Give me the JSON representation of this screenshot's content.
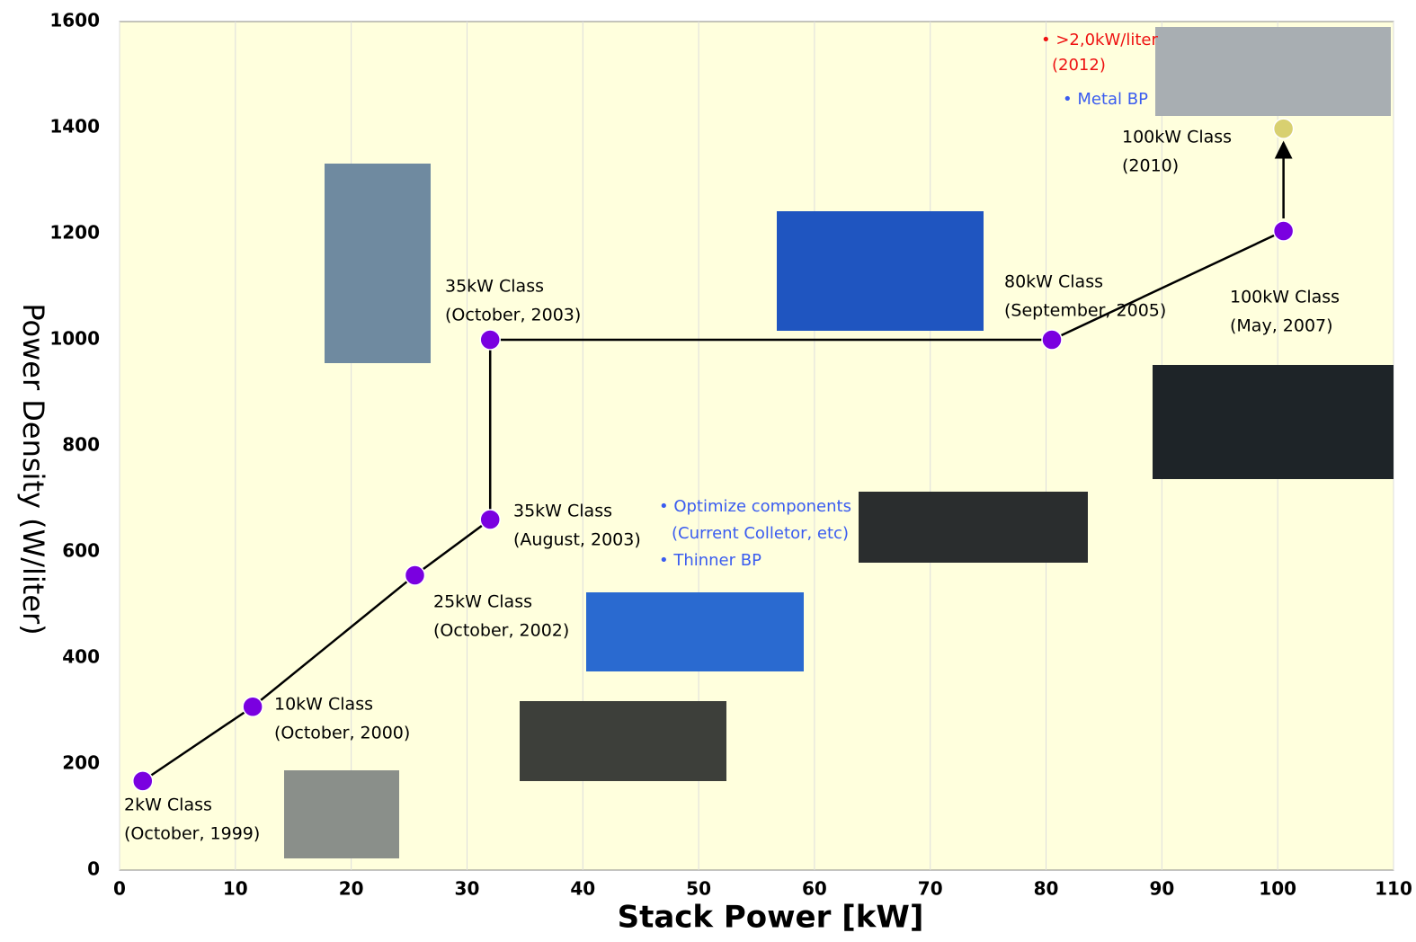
{
  "chart_data": {
    "type": "line",
    "x_label": "Stack Power [kW]",
    "y_label": "Power Density (W/liter)",
    "xlim": [
      0,
      110
    ],
    "ylim": [
      0,
      1600
    ],
    "xticks": [
      0,
      10,
      20,
      30,
      40,
      50,
      60,
      70,
      80,
      90,
      100,
      110
    ],
    "yticks": [
      0,
      200,
      400,
      600,
      800,
      1000,
      1200,
      1400,
      1600
    ],
    "grid": "x",
    "background": "#ffffdd",
    "series": [
      {
        "color": "#7a00e0",
        "x": [
          2,
          11.5,
          25.5,
          32,
          32,
          80.5,
          100.5
        ],
        "values": [
          168,
          308,
          556,
          661,
          1000,
          1000,
          1205
        ]
      },
      {
        "color": "#d8d070",
        "x": [
          100.5
        ],
        "values": [
          1398
        ]
      }
    ],
    "annotations": [
      [
        "2kW Class",
        "(October, 1999)"
      ],
      [
        "10kW Class",
        "(October, 2000)"
      ],
      [
        "25kW Class",
        "(October, 2002)"
      ],
      [
        "35kW Class",
        "(August, 2003)"
      ],
      [
        "35kW Class",
        "(October, 2003)"
      ],
      [
        "80kW Class",
        "(September, 2005)"
      ],
      [
        "100kW Class",
        "(May, 2007)"
      ],
      [
        "100kW Class",
        "(2010)"
      ]
    ],
    "notes": [
      {
        "color": "#3a5cf0",
        "lines": [
          "• Optimize components",
          "(Current Colletor, etc)",
          "• Thinner BP"
        ]
      },
      {
        "color": "#ee1111",
        "lines": [
          "• >2,0kW/liter",
          "(2012)"
        ]
      },
      {
        "color": "#3a5cf0",
        "lines": [
          "• Metal BP"
        ]
      }
    ]
  }
}
